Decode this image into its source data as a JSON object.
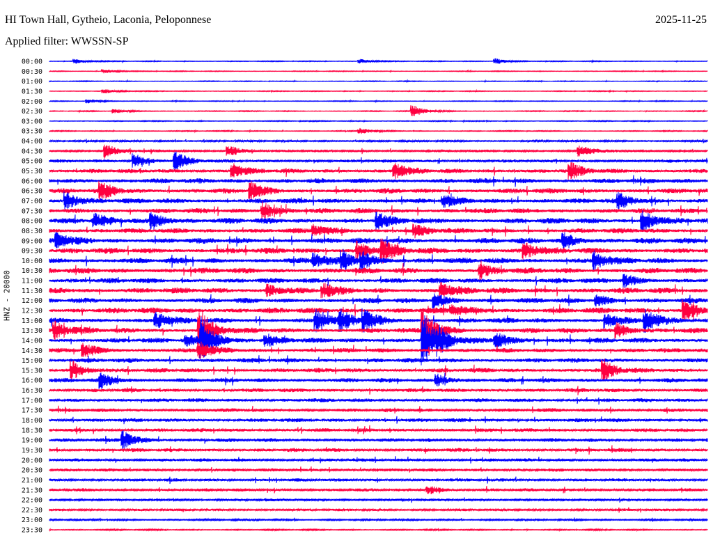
{
  "header": {
    "station": "HI Town Hall, Gytheio, Laconia, Peloponnese",
    "date": "2025-11-25",
    "filter": "Applied filter: WWSSN-SP"
  },
  "chart_data": {
    "type": "line",
    "title": "HI Town Hall, Gytheio, Laconia, Peloponnese",
    "ylabel": "HNZ - 20000",
    "minutes_per_line": 30,
    "colors": [
      "#0000ff",
      "#ff0040"
    ],
    "row_labels": [
      "00:00",
      "00:30",
      "01:00",
      "01:30",
      "02:00",
      "02:30",
      "03:00",
      "03:30",
      "04:00",
      "04:30",
      "05:00",
      "05:30",
      "06:00",
      "06:30",
      "07:00",
      "07:30",
      "08:00",
      "08:30",
      "09:00",
      "09:30",
      "10:00",
      "10:30",
      "11:00",
      "11:30",
      "12:00",
      "12:30",
      "13:00",
      "13:30",
      "14:00",
      "14:30",
      "15:00",
      "15:30",
      "16:00",
      "16:30",
      "17:00",
      "17:30",
      "18:00",
      "18:30",
      "19:00",
      "19:30",
      "20:00",
      "20:30",
      "21:00",
      "21:30",
      "22:00",
      "22:30",
      "23:00",
      "23:30"
    ],
    "noise_level": [
      0.6,
      0.6,
      0.6,
      0.6,
      0.6,
      0.7,
      0.7,
      0.8,
      1.5,
      2,
      2.5,
      3.5,
      4,
      4,
      4,
      4,
      4.5,
      4,
      4.5,
      4.5,
      4.5,
      4.5,
      4,
      4.5,
      4,
      4.5,
      4,
      4,
      4,
      3.5,
      3.5,
      3.5,
      3.5,
      3,
      3,
      3,
      3,
      3,
      3,
      3,
      2.5,
      2.5,
      2.5,
      2.5,
      2,
      2,
      1.5,
      1
    ],
    "events": [
      [
        0,
        1.2,
        3
      ],
      [
        0,
        14.2,
        3
      ],
      [
        0,
        20.4,
        4
      ],
      [
        1,
        2.5,
        3
      ],
      [
        3,
        2.5,
        3
      ],
      [
        4,
        1.8,
        3
      ],
      [
        5,
        16.6,
        8
      ],
      [
        5,
        3.0,
        3
      ],
      [
        7,
        14.2,
        4
      ],
      [
        9,
        2.6,
        10
      ],
      [
        9,
        8.2,
        8
      ],
      [
        9,
        24.2,
        8
      ],
      [
        10,
        3.9,
        10
      ],
      [
        10,
        5.8,
        12
      ],
      [
        11,
        8.4,
        10
      ],
      [
        11,
        15.8,
        10
      ],
      [
        11,
        23.8,
        10
      ],
      [
        13,
        2.4,
        12
      ],
      [
        13,
        9.2,
        12
      ],
      [
        14,
        0.8,
        12
      ],
      [
        14,
        18.0,
        8
      ],
      [
        14,
        26.0,
        10
      ],
      [
        15,
        9.8,
        12
      ],
      [
        16,
        2.1,
        8
      ],
      [
        16,
        4.7,
        12
      ],
      [
        16,
        15.0,
        10
      ],
      [
        16,
        27.1,
        14
      ],
      [
        17,
        12.1,
        8
      ],
      [
        17,
        16.7,
        8
      ],
      [
        18,
        0.4,
        10
      ],
      [
        18,
        23.5,
        10
      ],
      [
        19,
        14.1,
        12
      ],
      [
        19,
        15.2,
        14
      ],
      [
        19,
        21.7,
        12
      ],
      [
        20,
        12.1,
        10
      ],
      [
        20,
        13.4,
        12
      ],
      [
        20,
        14.3,
        10
      ],
      [
        20,
        24.9,
        12
      ],
      [
        21,
        19.7,
        8
      ],
      [
        22,
        26.3,
        8
      ],
      [
        23,
        10.0,
        8
      ],
      [
        23,
        12.5,
        10
      ],
      [
        23,
        17.9,
        12
      ],
      [
        24,
        17.6,
        10
      ],
      [
        24,
        25.0,
        8
      ],
      [
        25,
        18.4,
        8
      ],
      [
        25,
        29.0,
        14
      ],
      [
        26,
        4.9,
        12
      ],
      [
        26,
        12.2,
        14
      ],
      [
        26,
        13.3,
        12
      ],
      [
        26,
        14.4,
        14
      ],
      [
        26,
        25.4,
        10
      ],
      [
        26,
        27.2,
        16
      ],
      [
        27,
        0.3,
        12
      ],
      [
        27,
        6.9,
        30
      ],
      [
        27,
        17.1,
        30
      ],
      [
        27,
        25.9,
        10
      ],
      [
        28,
        6.3,
        8
      ],
      [
        28,
        7.0,
        30
      ],
      [
        28,
        9.9,
        8
      ],
      [
        28,
        17.1,
        35
      ],
      [
        28,
        17.8,
        10
      ],
      [
        28,
        20.4,
        12
      ],
      [
        29,
        1.6,
        10
      ],
      [
        29,
        6.9,
        12
      ],
      [
        31,
        1.1,
        12
      ],
      [
        31,
        25.3,
        14
      ],
      [
        32,
        2.4,
        10
      ],
      [
        32,
        17.7,
        8
      ],
      [
        38,
        3.4,
        12
      ],
      [
        43,
        17.3,
        6
      ]
    ]
  }
}
